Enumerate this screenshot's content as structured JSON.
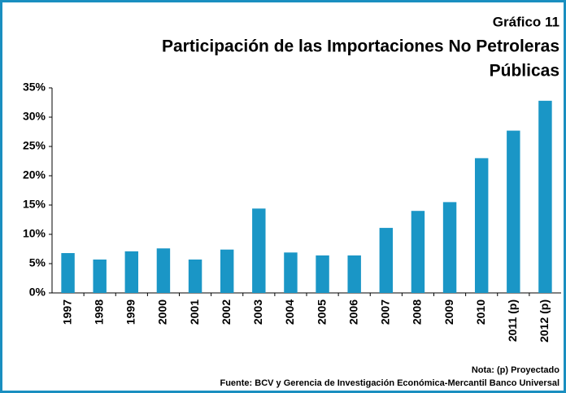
{
  "chart_data": {
    "type": "bar",
    "label": "Gráfico 11",
    "title": [
      "Participación de las Importaciones No Petroleras",
      "Públicas"
    ],
    "categories": [
      "1997",
      "1998",
      "1999",
      "2000",
      "2001",
      "2002",
      "2003",
      "2004",
      "2005",
      "2006",
      "2007",
      "2008",
      "2009",
      "2010",
      "2011 (p)",
      "2012 (p)"
    ],
    "values": [
      6.8,
      5.7,
      7.1,
      7.6,
      5.7,
      7.4,
      14.4,
      6.9,
      6.4,
      6.4,
      11.1,
      14.0,
      15.5,
      23.0,
      27.7,
      32.8
    ],
    "color": "#1a96c6",
    "ylim": [
      0,
      35
    ],
    "yticks": [
      {
        "value": 0,
        "label": "0%"
      },
      {
        "value": 5,
        "label": "5%"
      },
      {
        "value": 10,
        "label": "10%"
      },
      {
        "value": 15,
        "label": "15%"
      },
      {
        "value": 20,
        "label": "20%"
      },
      {
        "value": 25,
        "label": "25%"
      },
      {
        "value": 30,
        "label": "30%"
      },
      {
        "value": 35,
        "label": "35%"
      }
    ],
    "grid": false,
    "notes": [
      "Nota: (p) Proyectado",
      "Fuente: BCV y Gerencia de Investigación Económica-Mercantil Banco Universal"
    ]
  }
}
